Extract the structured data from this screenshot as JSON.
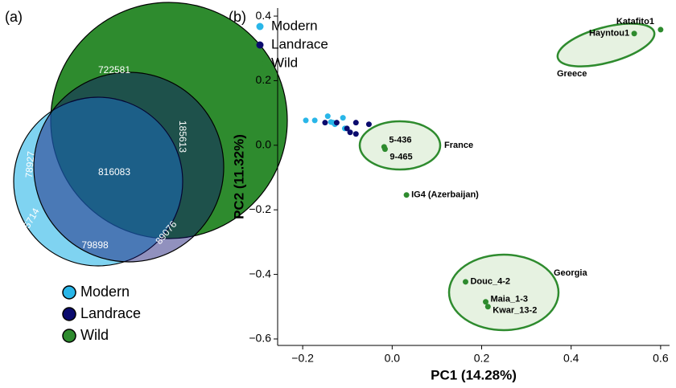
{
  "chart_data": [
    {
      "type": "venn",
      "panel_label": "(a)",
      "series": [
        {
          "name": "Modern",
          "color": "#29b6e8"
        },
        {
          "name": "Landrace",
          "color": "#0b0b6e"
        },
        {
          "name": "Wild",
          "color": "#2e8b2e"
        }
      ],
      "values": [
        722581,
        816083,
        185613,
        78927,
        65714,
        79898,
        89076
      ]
    },
    {
      "type": "scatter",
      "panel_label": "(b)",
      "xlabel": "PC1 (14.28%)",
      "ylabel": "PC2 (11.32%)",
      "xlim": [
        -0.256,
        0.62
      ],
      "ylim": [
        -0.62,
        0.425
      ],
      "xticks": [
        {
          "value": -0.2,
          "label": "−0.2"
        },
        {
          "value": 0,
          "label": "0.0"
        },
        0.2,
        0.4,
        0.6
      ],
      "yticks": [
        0.4,
        0.2,
        {
          "value": 0,
          "label": "0.0"
        },
        {
          "value": -0.2,
          "label": "−0.2"
        },
        {
          "value": -0.4,
          "label": "−0.4"
        },
        {
          "value": -0.6,
          "label": "−0.6"
        }
      ],
      "series": [
        {
          "name": "Modern",
          "color": "#29b6e8",
          "x": [
            -0.193,
            -0.173,
            -0.144,
            -0.137,
            -0.128,
            -0.11,
            -0.106,
            -0.132
          ],
          "y": [
            0.077,
            0.077,
            0.09,
            0.072,
            0.065,
            0.085,
            0.052,
            0.07
          ]
        },
        {
          "name": "Landrace",
          "color": "#0b0b6e",
          "x": [
            -0.15,
            -0.124,
            -0.101,
            -0.094,
            -0.081,
            -0.081,
            -0.052
          ],
          "y": [
            0.07,
            0.07,
            0.052,
            0.04,
            0.035,
            0.07,
            0.065
          ]
        },
        {
          "name": "Wild",
          "color": "#2e8b2e",
          "x": [
            -0.018,
            -0.016,
            0.032,
            0.6,
            0.541,
            0.164,
            0.209,
            0.214
          ],
          "y": [
            -0.005,
            -0.012,
            -0.154,
            0.358,
            0.346,
            -0.423,
            -0.485,
            -0.5
          ],
          "labels": [
            "5-436",
            "9-465",
            "IG4 (Azerbaijan)",
            "Katafito1",
            "Hayntou1",
            "Douc_4-2",
            "Maia_1-3",
            "Kwar_13-2"
          ]
        }
      ],
      "annotations": [
        "Greece",
        "France",
        "Georgia"
      ]
    }
  ]
}
